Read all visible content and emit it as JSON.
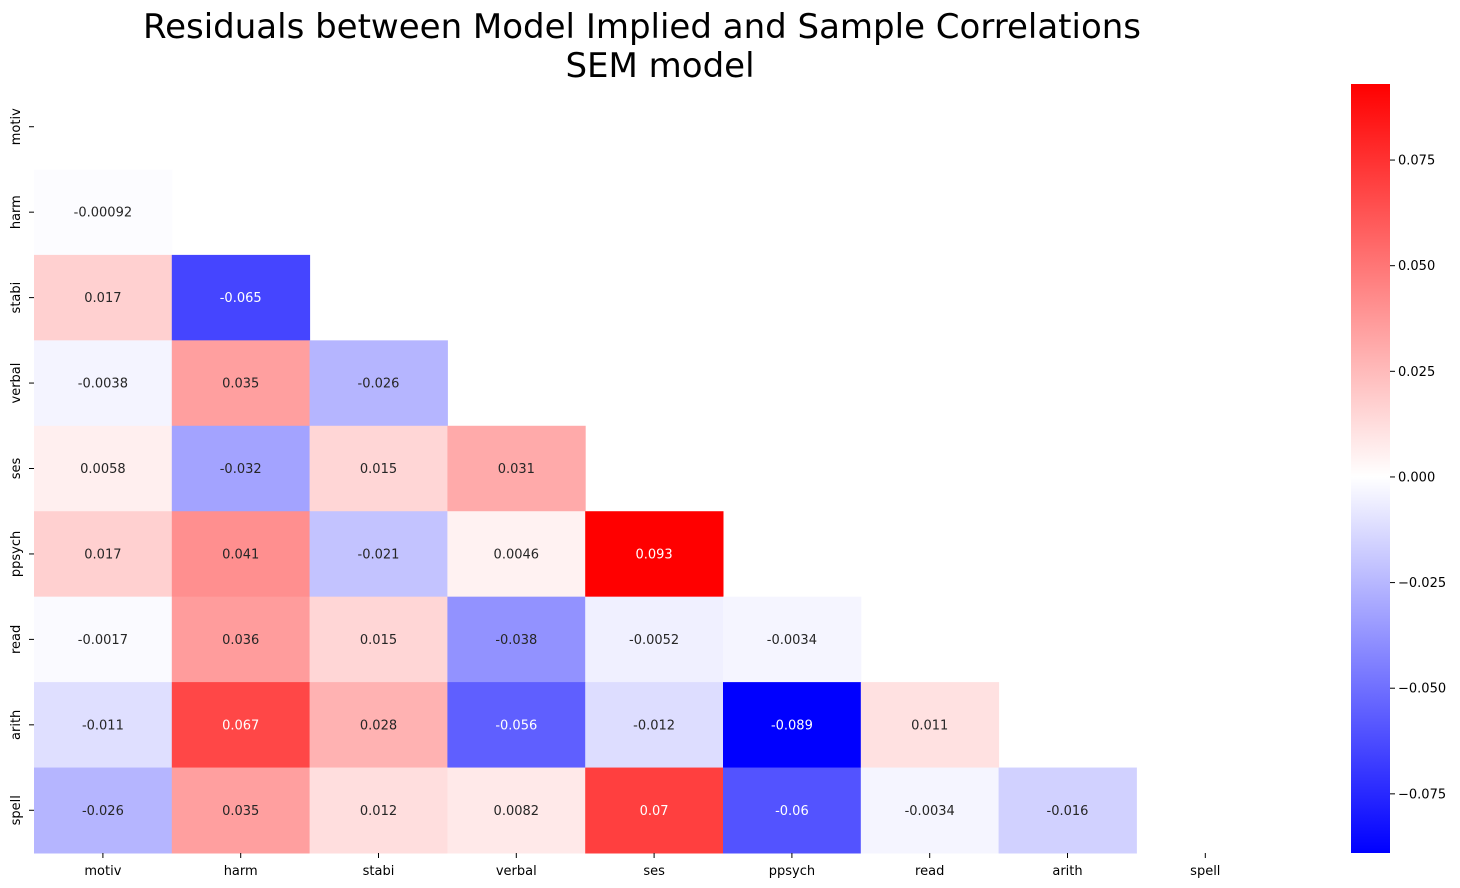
{
  "chart_data": {
    "type": "heatmap",
    "title": "Residuals between Model Implied and Sample Correlations",
    "subtitle": "SEM model",
    "xlabel": "",
    "ylabel": "",
    "variables": [
      "motiv",
      "harm",
      "stabi",
      "verbal",
      "ses",
      "ppsych",
      "read",
      "arith",
      "spell"
    ],
    "matrix_lower": [
      [],
      [
        "-0.00092"
      ],
      [
        "0.017",
        "-0.065"
      ],
      [
        "-0.0038",
        "0.035",
        "-0.026"
      ],
      [
        "0.0058",
        "-0.032",
        "0.015",
        "0.031"
      ],
      [
        "0.017",
        "0.041",
        "-0.021",
        "0.0046",
        "0.093"
      ],
      [
        "-0.0017",
        "0.036",
        "0.015",
        "-0.038",
        "-0.0052",
        "-0.0034"
      ],
      [
        "-0.011",
        "0.067",
        "0.028",
        "-0.056",
        "-0.012",
        "-0.089",
        "0.011"
      ],
      [
        "-0.026",
        "0.035",
        "0.012",
        "0.0082",
        "0.07",
        "-0.06",
        "-0.0034",
        "-0.016"
      ]
    ],
    "mask": "upper triangle including diagonal",
    "colorbar": {
      "colormap": "bwr",
      "vmin": -0.089,
      "vmax": 0.093,
      "ticks": [
        "−0.075",
        "−0.050",
        "−0.025",
        "0.000",
        "0.025",
        "0.050",
        "0.075"
      ],
      "tick_values": [
        -0.075,
        -0.05,
        -0.025,
        0.0,
        0.025,
        0.05,
        0.075
      ]
    },
    "colors": {
      "low": "#0000ff",
      "mid": "#ffffff",
      "high": "#ff0000"
    },
    "grid": false,
    "legend": "colorbar-right"
  }
}
